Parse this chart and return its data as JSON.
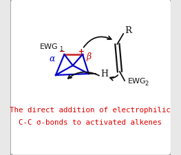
{
  "bg_color": "#e8e8e8",
  "box_color": "#ffffff",
  "title_line1": "The direct addition of electrophilic",
  "title_line2": "C-C σ-bonds to activated alkenes",
  "title_color": "#dd0000",
  "title_fontsize": 7.8,
  "blue_color": "#0000cc",
  "red_bond_color": "#cc3333",
  "red_label_color": "#cc0000",
  "black_color": "#111111",
  "label_alpha": "α",
  "label_beta": "β",
  "label_minus": "−",
  "label_plus": "+"
}
